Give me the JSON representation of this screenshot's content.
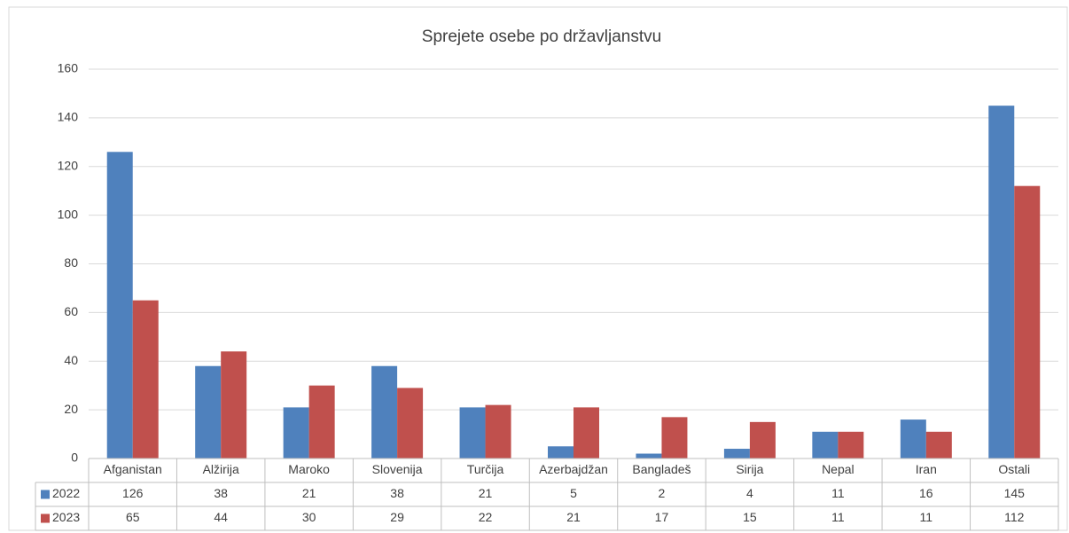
{
  "chart_data": {
    "type": "bar",
    "title": "Sprejete osebe po državljanstvu",
    "categories": [
      "Afganistan",
      "Alžirija",
      "Maroko",
      "Slovenija",
      "Turčija",
      "Azerbajdžan",
      "Bangladeš",
      "Sirija",
      "Nepal",
      "Iran",
      "Ostali"
    ],
    "series": [
      {
        "name": "2022",
        "color": "#4f81bd",
        "values": [
          126,
          38,
          21,
          38,
          21,
          5,
          2,
          4,
          11,
          16,
          145
        ]
      },
      {
        "name": "2023",
        "color": "#c0504d",
        "values": [
          65,
          44,
          30,
          29,
          22,
          21,
          17,
          15,
          11,
          11,
          112
        ]
      }
    ],
    "ylim": [
      0,
      160
    ],
    "yticks": [
      0,
      20,
      40,
      60,
      80,
      100,
      120,
      140,
      160
    ],
    "grid": true,
    "data_table": true
  }
}
